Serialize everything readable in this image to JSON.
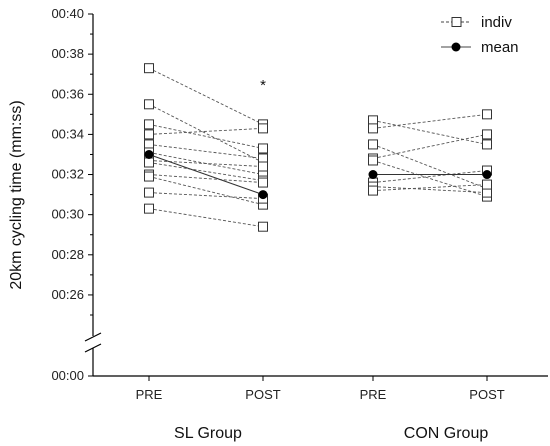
{
  "chart_data": {
    "type": "line",
    "ylabel": "20km cycling time (mm:ss)",
    "y_axis": {
      "break": true,
      "upper_range": [
        0.25,
        0.4
      ],
      "upper_ticks": [
        "00:26",
        "00:28",
        "00:30",
        "00:32",
        "00:34",
        "00:36",
        "00:38",
        "00:40"
      ],
      "upper_tick_values": [
        0.26,
        0.28,
        0.3,
        0.32,
        0.34,
        0.36,
        0.38,
        0.4
      ],
      "lower_tick": "00:00",
      "lower_tick_value": 0.0
    },
    "x_ticks": [
      "PRE",
      "POST",
      "PRE",
      "POST"
    ],
    "groups": [
      "SL Group",
      "CON Group"
    ],
    "legend": {
      "position": "top-right",
      "indiv": "indiv",
      "mean": "mean"
    },
    "annotation": "*",
    "groups_data": [
      {
        "name": "SL Group",
        "individuals": [
          [
            0.373,
            0.345
          ],
          [
            0.355,
            0.326
          ],
          [
            0.345,
            0.333
          ],
          [
            0.34,
            0.343
          ],
          [
            0.335,
            0.328
          ],
          [
            0.331,
            0.32
          ],
          [
            0.327,
            0.324
          ],
          [
            0.326,
            0.317
          ],
          [
            0.32,
            0.316
          ],
          [
            0.319,
            0.305
          ],
          [
            0.311,
            0.308
          ],
          [
            0.303,
            0.294
          ]
        ],
        "mean": [
          0.33,
          0.31
        ]
      },
      {
        "name": "CON Group",
        "individuals": [
          [
            0.347,
            0.335
          ],
          [
            0.343,
            0.35
          ],
          [
            0.335,
            0.313
          ],
          [
            0.328,
            0.34
          ],
          [
            0.327,
            0.309
          ],
          [
            0.316,
            0.322
          ],
          [
            0.314,
            0.311
          ],
          [
            0.312,
            0.315
          ]
        ],
        "mean": [
          0.32,
          0.32
        ]
      }
    ]
  }
}
